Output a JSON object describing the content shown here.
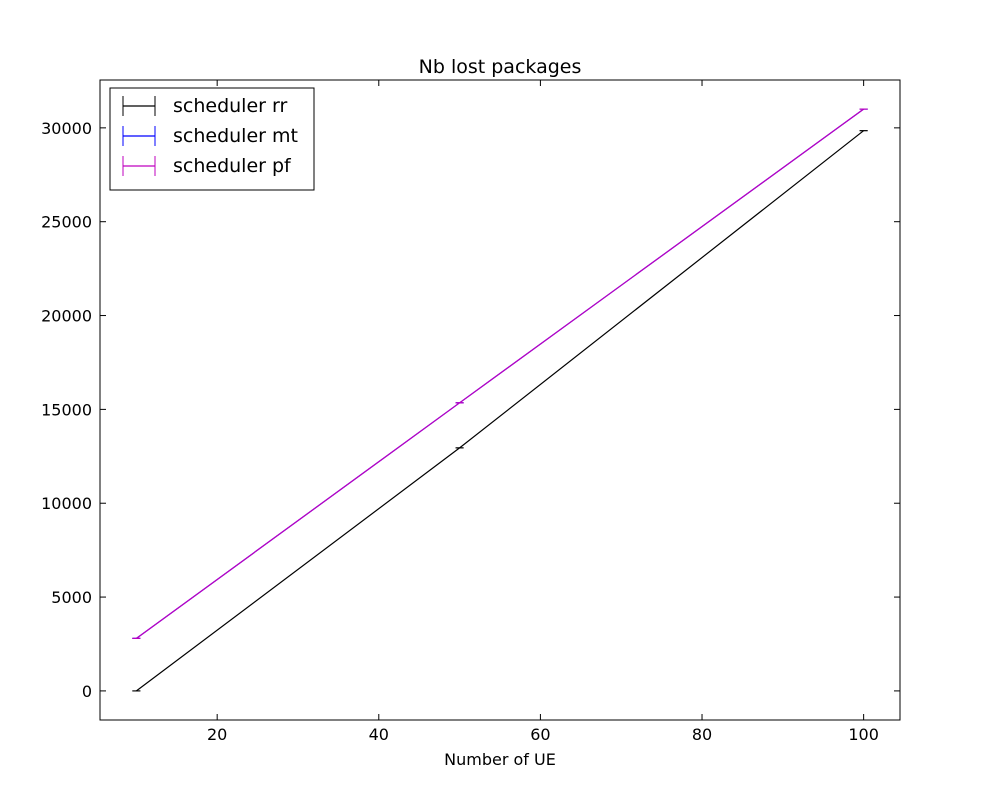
{
  "chart_data": {
    "type": "line",
    "title": "Nb lost packages",
    "xlabel": "Number of UE",
    "ylabel": "",
    "xlim": [
      5.5,
      104.5
    ],
    "ylim": [
      -1550,
      32550
    ],
    "x_ticks": [
      20,
      40,
      60,
      80,
      100
    ],
    "y_ticks": [
      0,
      5000,
      10000,
      15000,
      20000,
      25000,
      30000
    ],
    "grid": false,
    "legend_position": "top-left",
    "error_bars": true,
    "series": [
      {
        "name": "scheduler rr",
        "color": "#000000",
        "x": [
          10,
          50,
          100
        ],
        "y": [
          0,
          12950,
          29850
        ],
        "err": [
          0,
          0,
          0
        ]
      },
      {
        "name": "scheduler mt",
        "color": "#0000ff",
        "x": [
          10,
          50,
          100
        ],
        "y": [
          2800,
          15350,
          31000
        ],
        "err": [
          0,
          0,
          0
        ]
      },
      {
        "name": "scheduler pf",
        "color": "#bf00bf",
        "x": [
          10,
          50,
          100
        ],
        "y": [
          2800,
          15350,
          31000
        ],
        "err": [
          0,
          0,
          0
        ]
      }
    ]
  }
}
